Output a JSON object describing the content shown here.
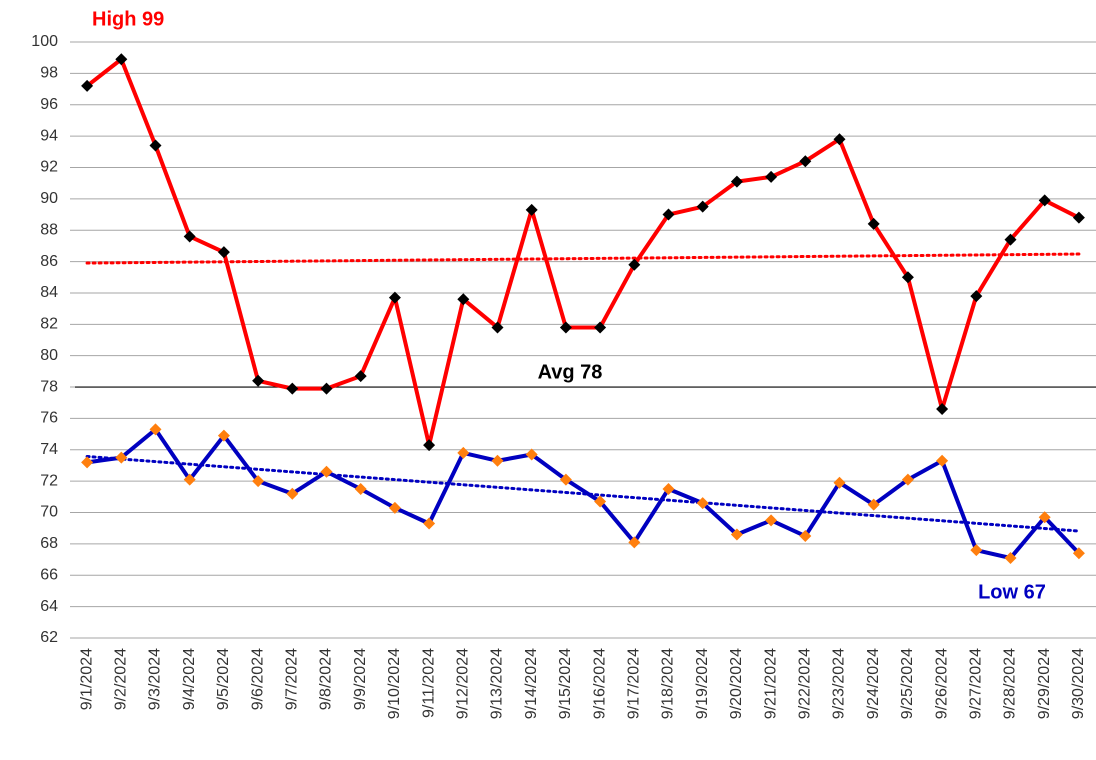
{
  "chart_data": {
    "type": "line",
    "categories": [
      "9/1/2024",
      "9/2/2024",
      "9/3/2024",
      "9/4/2024",
      "9/5/2024",
      "9/6/2024",
      "9/7/2024",
      "9/8/2024",
      "9/9/2024",
      "9/10/2024",
      "9/11/2024",
      "9/12/2024",
      "9/13/2024",
      "9/14/2024",
      "9/15/2024",
      "9/16/2024",
      "9/17/2024",
      "9/18/2024",
      "9/19/2024",
      "9/20/2024",
      "9/21/2024",
      "9/22/2024",
      "9/23/2024",
      "9/24/2024",
      "9/25/2024",
      "9/26/2024",
      "9/27/2024",
      "9/28/2024",
      "9/29/2024",
      "9/30/2024"
    ],
    "series": [
      {
        "color": "#ff0000",
        "marker_color": "#000000",
        "values": [
          97.2,
          98.9,
          93.4,
          87.6,
          86.6,
          78.4,
          77.9,
          77.9,
          78.7,
          83.7,
          74.3,
          83.6,
          81.8,
          89.3,
          81.8,
          81.8,
          85.8,
          89.0,
          89.5,
          91.1,
          91.4,
          92.4,
          93.8,
          88.4,
          85.0,
          76.6,
          83.8,
          87.4,
          89.9,
          88.8
        ]
      },
      {
        "color": "#0000c0",
        "marker_color": "#ff7f0e",
        "values": [
          73.2,
          73.5,
          75.3,
          72.1,
          74.9,
          72.0,
          71.2,
          72.6,
          71.5,
          70.3,
          69.3,
          73.8,
          73.3,
          73.7,
          72.1,
          70.7,
          68.1,
          71.5,
          70.6,
          68.6,
          69.5,
          68.5,
          71.9,
          70.5,
          72.1,
          73.3,
          67.6,
          67.1,
          69.7,
          67.4
        ]
      }
    ],
    "trendline": true,
    "ylim": [
      62,
      100
    ],
    "yticks": [
      62,
      64,
      66,
      68,
      70,
      72,
      74,
      76,
      78,
      80,
      82,
      84,
      86,
      88,
      90,
      92,
      94,
      96,
      98,
      100
    ],
    "grid": true,
    "annotations": [
      {
        "label": "High 99",
        "value": 99,
        "color": "#ff0000"
      },
      {
        "label": "Avg 78",
        "value": 78,
        "color": "#000000",
        "line": true
      },
      {
        "label": "Low 67",
        "value": 67,
        "color": "#0000c0"
      }
    ]
  }
}
